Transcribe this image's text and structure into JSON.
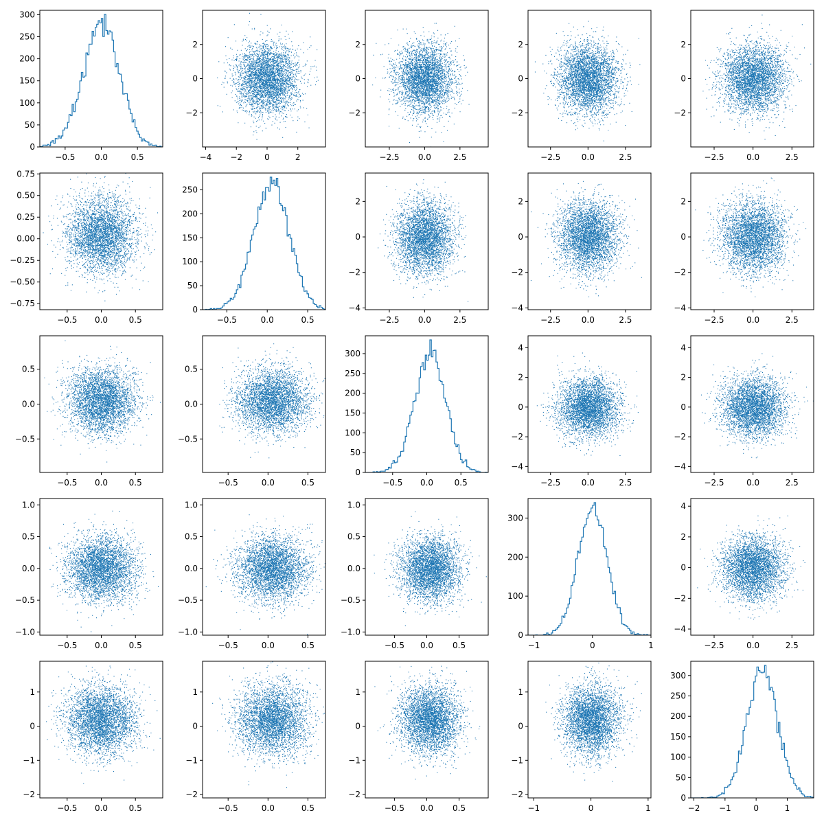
{
  "chart_data": {
    "type": "scatter-matrix",
    "rows": 5,
    "cols": 5,
    "color": "#1f77b4",
    "variables": [
      {
        "range": [
          -0.85,
          0.85
        ],
        "ticks": [
          -0.5,
          0.0,
          0.5
        ],
        "tick_labels": [
          "−0.5",
          "0.0",
          "0.5"
        ],
        "sigma": 0.25,
        "mean": 0.0
      },
      {
        "range": [
          -0.8,
          0.72
        ],
        "ticks": [
          -0.5,
          0.0,
          0.5
        ],
        "tick_labels": [
          "−0.5",
          "0.0",
          "0.5"
        ],
        "sigma": 0.22,
        "mean": 0.05
      },
      {
        "range": [
          -0.9,
          0.9
        ],
        "ticks": [
          -0.5,
          0.0,
          0.5
        ],
        "tick_labels": [
          "−0.5",
          "0.0",
          "0.5"
        ],
        "sigma": 0.23,
        "mean": 0.05
      },
      {
        "range": [
          -1.1,
          1.0
        ],
        "ticks": [
          -1,
          0,
          1
        ],
        "tick_labels": [
          "−1",
          "0",
          "1"
        ],
        "sigma": 0.25,
        "mean": 0.0
      },
      {
        "range": [
          -2.1,
          1.85
        ],
        "ticks": [
          -2,
          -1,
          0,
          1
        ],
        "tick_labels": [
          "−2",
          "−1",
          "0",
          "1"
        ],
        "sigma": 0.5,
        "mean": 0.2
      }
    ],
    "cells": [
      [
        {
          "kind": "hist",
          "var": 0,
          "ylim": [
            0,
            310
          ],
          "yticks": [
            0,
            50,
            100,
            150,
            200,
            250,
            300
          ],
          "ytick_labels": [
            "0",
            "50",
            "100",
            "150",
            "200",
            "250",
            "300"
          ]
        },
        {
          "kind": "scatter",
          "xlim": [
            -4.2,
            3.8
          ],
          "ylim": [
            -4.0,
            4.0
          ],
          "xticks": [
            -4,
            -2,
            0,
            2
          ],
          "xtick_labels": [
            "−4",
            "−2",
            "0",
            "2"
          ],
          "yticks": [
            -2,
            0,
            2
          ],
          "ytick_labels": [
            "−2",
            "0",
            "2"
          ],
          "sx": 1.0,
          "sy": 1.0,
          "mx": 0.0,
          "my": 0.0
        },
        {
          "kind": "scatter",
          "xlim": [
            -4.2,
            4.5
          ],
          "ylim": [
            -4.0,
            4.0
          ],
          "xticks": [
            -2.5,
            0.0,
            2.5
          ],
          "xtick_labels": [
            "−2.5",
            "0.0",
            "2.5"
          ],
          "yticks": [
            -2,
            0,
            2
          ],
          "ytick_labels": [
            "−2",
            "0",
            "2"
          ],
          "sx": 1.0,
          "sy": 1.0,
          "mx": 0.0,
          "my": 0.0
        },
        {
          "kind": "scatter",
          "xlim": [
            -4.0,
            4.2
          ],
          "ylim": [
            -4.0,
            4.0
          ],
          "xticks": [
            -2.5,
            0.0,
            2.5
          ],
          "xtick_labels": [
            "−2.5",
            "0.0",
            "2.5"
          ],
          "yticks": [
            -2,
            0,
            2
          ],
          "ytick_labels": [
            "−2",
            "0",
            "2"
          ],
          "sx": 1.0,
          "sy": 1.0,
          "mx": 0.0,
          "my": 0.0
        },
        {
          "kind": "scatter",
          "xlim": [
            -4.0,
            3.9
          ],
          "ylim": [
            -4.0,
            4.0
          ],
          "xticks": [
            -2.5,
            0.0,
            2.5
          ],
          "xtick_labels": [
            "−2.5",
            "0.0",
            "2.5"
          ],
          "yticks": [
            -2,
            0,
            2
          ],
          "ytick_labels": [
            "−2",
            "0",
            "2"
          ],
          "sx": 1.0,
          "sy": 1.0,
          "mx": 0.0,
          "my": 0.0
        }
      ],
      [
        {
          "kind": "scatter",
          "xlim": [
            -0.9,
            0.9
          ],
          "ylim": [
            -0.82,
            0.76
          ],
          "xticks": [
            -0.5,
            0.0,
            0.5
          ],
          "xtick_labels": [
            "−0.5",
            "0.0",
            "0.5"
          ],
          "yticks": [
            -0.75,
            -0.5,
            -0.25,
            0.0,
            0.25,
            0.5,
            0.75
          ],
          "ytick_labels": [
            "−0.75",
            "−0.50",
            "−0.25",
            "0.00",
            "0.25",
            "0.50",
            "0.75"
          ],
          "sx": 0.25,
          "sy": 0.22,
          "mx": 0.0,
          "my": 0.05
        },
        {
          "kind": "hist",
          "var": 1,
          "ylim": [
            0,
            285
          ],
          "yticks": [
            0,
            50,
            100,
            150,
            200,
            250
          ],
          "ytick_labels": [
            "0",
            "50",
            "100",
            "150",
            "200",
            "250"
          ]
        },
        {
          "kind": "scatter",
          "xlim": [
            -4.2,
            4.5
          ],
          "ylim": [
            -4.1,
            3.6
          ],
          "xticks": [
            -2.5,
            0.0,
            2.5
          ],
          "xtick_labels": [
            "−2.5",
            "0.0",
            "2.5"
          ],
          "yticks": [
            -4,
            -2,
            0,
            2
          ],
          "ytick_labels": [
            "−4",
            "−2",
            "0",
            "2"
          ],
          "sx": 1.0,
          "sy": 1.0,
          "mx": 0.0,
          "my": 0.0
        },
        {
          "kind": "scatter",
          "xlim": [
            -4.0,
            4.2
          ],
          "ylim": [
            -4.1,
            3.6
          ],
          "xticks": [
            -2.5,
            0.0,
            2.5
          ],
          "xtick_labels": [
            "−2.5",
            "0.0",
            "2.5"
          ],
          "yticks": [
            -4,
            -2,
            0,
            2
          ],
          "ytick_labels": [
            "−4",
            "−2",
            "0",
            "2"
          ],
          "sx": 1.0,
          "sy": 1.0,
          "mx": 0.0,
          "my": 0.0
        },
        {
          "kind": "scatter",
          "xlim": [
            -4.0,
            3.9
          ],
          "ylim": [
            -4.1,
            3.6
          ],
          "xticks": [
            -2.5,
            0.0,
            2.5
          ],
          "xtick_labels": [
            "−2.5",
            "0.0",
            "2.5"
          ],
          "yticks": [
            -4,
            -2,
            0,
            2
          ],
          "ytick_labels": [
            "−4",
            "−2",
            "0",
            "2"
          ],
          "sx": 1.0,
          "sy": 1.0,
          "mx": 0.0,
          "my": 0.0
        }
      ],
      [
        {
          "kind": "scatter",
          "xlim": [
            -0.9,
            0.9
          ],
          "ylim": [
            -0.98,
            0.98
          ],
          "xticks": [
            -0.5,
            0.0,
            0.5
          ],
          "xtick_labels": [
            "−0.5",
            "0.0",
            "0.5"
          ],
          "yticks": [
            -0.5,
            0.0,
            0.5
          ],
          "ytick_labels": [
            "−0.5",
            "0.0",
            "0.5"
          ],
          "sx": 0.25,
          "sy": 0.23,
          "mx": 0.0,
          "my": 0.05
        },
        {
          "kind": "scatter",
          "xlim": [
            -0.82,
            0.72
          ],
          "ylim": [
            -0.98,
            0.98
          ],
          "xticks": [
            -0.5,
            0.0,
            0.5
          ],
          "xtick_labels": [
            "−0.5",
            "0.0",
            "0.5"
          ],
          "yticks": [
            -0.5,
            0.0,
            0.5
          ],
          "ytick_labels": [
            "−0.5",
            "0.0",
            "0.5"
          ],
          "sx": 0.22,
          "sy": 0.23,
          "mx": 0.05,
          "my": 0.05
        },
        {
          "kind": "hist",
          "var": 2,
          "ylim": [
            0,
            345
          ],
          "yticks": [
            0,
            50,
            100,
            150,
            200,
            250,
            300
          ],
          "ytick_labels": [
            "0",
            "50",
            "100",
            "150",
            "200",
            "250",
            "300"
          ]
        },
        {
          "kind": "scatter",
          "xlim": [
            -4.0,
            4.2
          ],
          "ylim": [
            -4.4,
            4.8
          ],
          "xticks": [
            -2.5,
            0.0,
            2.5
          ],
          "xtick_labels": [
            "−2.5",
            "0.0",
            "2.5"
          ],
          "yticks": [
            -4,
            -2,
            0,
            2,
            4
          ],
          "ytick_labels": [
            "−4",
            "−2",
            "0",
            "2",
            "4"
          ],
          "sx": 1.0,
          "sy": 1.0,
          "mx": 0.0,
          "my": 0.0
        },
        {
          "kind": "scatter",
          "xlim": [
            -4.0,
            3.9
          ],
          "ylim": [
            -4.4,
            4.8
          ],
          "xticks": [
            -2.5,
            0.0,
            2.5
          ],
          "xtick_labels": [
            "−2.5",
            "0.0",
            "2.5"
          ],
          "yticks": [
            -4,
            -2,
            0,
            2,
            4
          ],
          "ytick_labels": [
            "−4",
            "−2",
            "0",
            "2",
            "4"
          ],
          "sx": 1.0,
          "sy": 1.0,
          "mx": 0.0,
          "my": 0.0
        }
      ],
      [
        {
          "kind": "scatter",
          "xlim": [
            -0.9,
            0.9
          ],
          "ylim": [
            -1.05,
            1.1
          ],
          "xticks": [
            -0.5,
            0.0,
            0.5
          ],
          "xtick_labels": [
            "−0.5",
            "0.0",
            "0.5"
          ],
          "yticks": [
            -1.0,
            -0.5,
            0.0,
            0.5,
            1.0
          ],
          "ytick_labels": [
            "−1.0",
            "−0.5",
            "0.0",
            "0.5",
            "1.0"
          ],
          "sx": 0.25,
          "sy": 0.25,
          "mx": 0.0,
          "my": 0.0
        },
        {
          "kind": "scatter",
          "xlim": [
            -0.82,
            0.72
          ],
          "ylim": [
            -1.05,
            1.1
          ],
          "xticks": [
            -0.5,
            0.0,
            0.5
          ],
          "xtick_labels": [
            "−0.5",
            "0.0",
            "0.5"
          ],
          "yticks": [
            -1.0,
            -0.5,
            0.0,
            0.5,
            1.0
          ],
          "ytick_labels": [
            "−1.0",
            "−0.5",
            "0.0",
            "0.5",
            "1.0"
          ],
          "sx": 0.22,
          "sy": 0.25,
          "mx": 0.05,
          "my": 0.0
        },
        {
          "kind": "scatter",
          "xlim": [
            -0.95,
            0.95
          ],
          "ylim": [
            -1.05,
            1.1
          ],
          "xticks": [
            -0.5,
            0.0,
            0.5
          ],
          "xtick_labels": [
            "−0.5",
            "0.0",
            "0.5"
          ],
          "yticks": [
            -1.0,
            -0.5,
            0.0,
            0.5,
            1.0
          ],
          "ytick_labels": [
            "−1.0",
            "−0.5",
            "0.0",
            "0.5",
            "1.0"
          ],
          "sx": 0.23,
          "sy": 0.25,
          "mx": 0.05,
          "my": 0.0
        },
        {
          "kind": "hist",
          "var": 3,
          "ylim": [
            0,
            350
          ],
          "yticks": [
            0,
            100,
            200,
            300
          ],
          "ytick_labels": [
            "0",
            "100",
            "200",
            "300"
          ]
        },
        {
          "kind": "scatter",
          "xlim": [
            -4.0,
            3.9
          ],
          "ylim": [
            -4.4,
            4.5
          ],
          "xticks": [
            -2.5,
            0.0,
            2.5
          ],
          "xtick_labels": [
            "−2.5",
            "0.0",
            "2.5"
          ],
          "yticks": [
            -4,
            -2,
            0,
            2,
            4
          ],
          "ytick_labels": [
            "−4",
            "−2",
            "0",
            "2",
            "4"
          ],
          "sx": 1.0,
          "sy": 1.0,
          "mx": 0.0,
          "my": 0.0
        }
      ],
      [
        {
          "kind": "scatter",
          "xlim": [
            -0.9,
            0.9
          ],
          "ylim": [
            -2.1,
            1.9
          ],
          "xticks": [
            -0.5,
            0.0,
            0.5
          ],
          "xtick_labels": [
            "−0.5",
            "0.0",
            "0.5"
          ],
          "yticks": [
            -2,
            -1,
            0,
            1
          ],
          "ytick_labels": [
            "−2",
            "−1",
            "0",
            "1"
          ],
          "sx": 0.25,
          "sy": 0.5,
          "mx": 0.0,
          "my": 0.2
        },
        {
          "kind": "scatter",
          "xlim": [
            -0.82,
            0.72
          ],
          "ylim": [
            -2.1,
            1.9
          ],
          "xticks": [
            -0.5,
            0.0,
            0.5
          ],
          "xtick_labels": [
            "−0.5",
            "0.0",
            "0.5"
          ],
          "yticks": [
            -2,
            -1,
            0,
            1
          ],
          "ytick_labels": [
            "−2",
            "−1",
            "0",
            "1"
          ],
          "sx": 0.22,
          "sy": 0.5,
          "mx": 0.05,
          "my": 0.2
        },
        {
          "kind": "scatter",
          "xlim": [
            -0.95,
            0.95
          ],
          "ylim": [
            -2.1,
            1.9
          ],
          "xticks": [
            -0.5,
            0.0,
            0.5
          ],
          "xtick_labels": [
            "−0.5",
            "0.0",
            "0.5"
          ],
          "yticks": [
            -2,
            -1,
            0,
            1
          ],
          "ytick_labels": [
            "−2",
            "−1",
            "0",
            "1"
          ],
          "sx": 0.23,
          "sy": 0.5,
          "mx": 0.05,
          "my": 0.2
        },
        {
          "kind": "scatter",
          "xlim": [
            -1.1,
            1.05
          ],
          "ylim": [
            -2.1,
            1.9
          ],
          "xticks": [
            -1,
            0,
            1
          ],
          "xtick_labels": [
            "−1",
            "0",
            "1"
          ],
          "yticks": [
            -2,
            -1,
            0,
            1
          ],
          "ytick_labels": [
            "−2",
            "−1",
            "0",
            "1"
          ],
          "sx": 0.25,
          "sy": 0.5,
          "mx": 0.0,
          "my": 0.2
        },
        {
          "kind": "hist",
          "var": 4,
          "ylim": [
            0,
            335
          ],
          "yticks": [
            0,
            50,
            100,
            150,
            200,
            250,
            300
          ],
          "ytick_labels": [
            "0",
            "50",
            "100",
            "150",
            "200",
            "250",
            "300"
          ]
        }
      ]
    ]
  }
}
